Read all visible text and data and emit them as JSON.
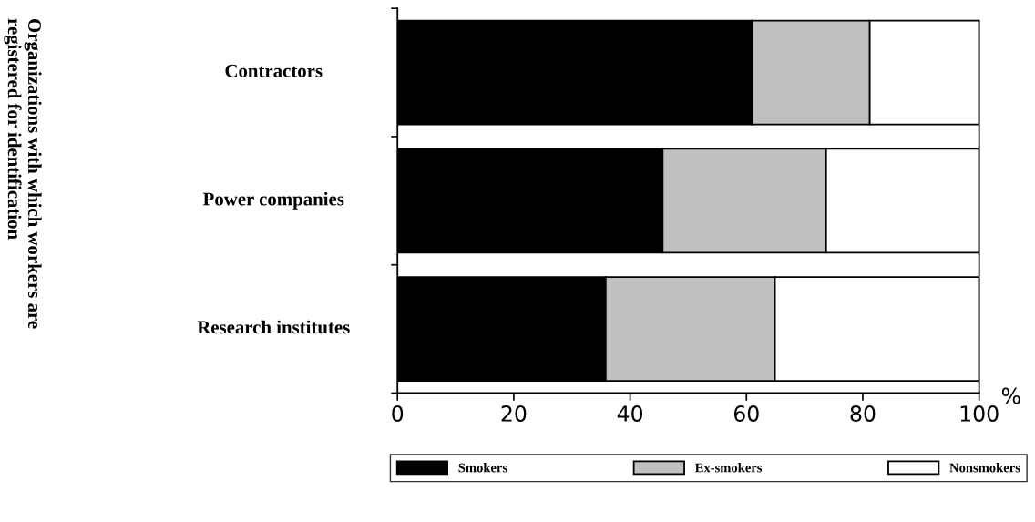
{
  "chart_data": {
    "type": "bar",
    "orientation": "horizontal",
    "stacked": true,
    "categories": [
      "Contractors",
      "Power companies",
      "Research institutes"
    ],
    "series": [
      {
        "name": "Smokers",
        "color": "#000000",
        "values": [
          61.0,
          45.6,
          35.8
        ]
      },
      {
        "name": "Ex-smokers",
        "color": "#c0c0c0",
        "values": [
          20.2,
          28.1,
          29.1
        ]
      },
      {
        "name": "Nonsmokers",
        "color": "#ffffff",
        "values": [
          18.8,
          26.3,
          35.1
        ]
      }
    ],
    "xlim": [
      0,
      100
    ],
    "xticks": [
      0,
      20,
      40,
      60,
      80,
      100
    ],
    "xlabel": "%",
    "annotations": [
      "Organizations with which workers are\nregistered for identification"
    ],
    "tick_labels": "x",
    "grid": false,
    "legend": "bottom"
  }
}
